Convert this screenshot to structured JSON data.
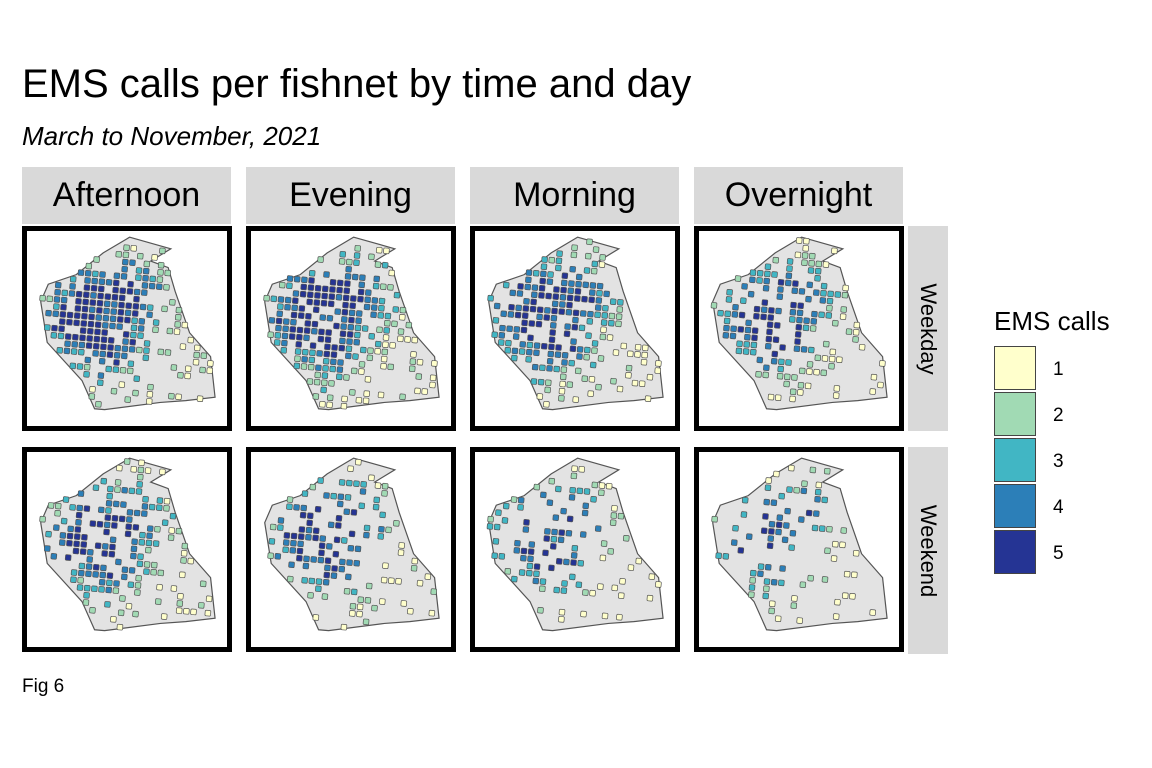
{
  "title": "EMS calls per fishnet by time and day",
  "subtitle": "March to November, 2021",
  "caption": "Fig 6",
  "columns": [
    "Afternoon",
    "Evening",
    "Morning",
    "Overnight"
  ],
  "rows": [
    "Weekday",
    "Weekend"
  ],
  "legend": {
    "title": "EMS calls",
    "items": [
      {
        "label": "1",
        "color": "#ffffcc"
      },
      {
        "label": "2",
        "color": "#a1dab4"
      },
      {
        "label": "3",
        "color": "#41b6c4"
      },
      {
        "label": "4",
        "color": "#2c7fb8"
      },
      {
        "label": "5",
        "color": "#253494"
      }
    ]
  },
  "colors": {
    "base_map_fill": "#e3e3e3",
    "base_map_stroke": "#555555",
    "cell_stroke": "#555555",
    "strip_background": "#d9d9d9"
  },
  "panels": [
    {
      "column": "Afternoon",
      "row": "Weekday",
      "density": 0.85
    },
    {
      "column": "Evening",
      "row": "Weekday",
      "density": 0.82
    },
    {
      "column": "Morning",
      "row": "Weekday",
      "density": 0.75
    },
    {
      "column": "Overnight",
      "row": "Weekday",
      "density": 0.55
    },
    {
      "column": "Afternoon",
      "row": "Weekend",
      "density": 0.62
    },
    {
      "column": "Evening",
      "row": "Weekend",
      "density": 0.58
    },
    {
      "column": "Morning",
      "row": "Weekend",
      "density": 0.42
    },
    {
      "column": "Overnight",
      "row": "Weekend",
      "density": 0.3
    }
  ]
}
